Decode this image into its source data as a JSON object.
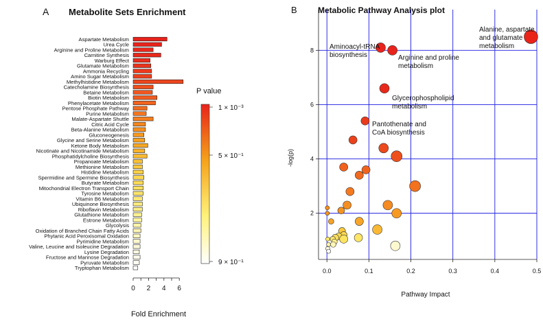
{
  "panel_a": {
    "letter": "A",
    "title": "Metabolite Sets Enrichment",
    "xlabel": "Fold Enrichment",
    "legend": {
      "title": "P value",
      "labels": [
        "1 × 10⁻³",
        "5 × 10⁻¹",
        "9 × 10⁻¹"
      ],
      "colors": [
        "#e8231b",
        "#f5a21a",
        "#fff27a",
        "#ffffff"
      ]
    }
  },
  "panel_b": {
    "letter": "B",
    "title": "Metabolic Pathway Analysis plot",
    "xlabel": "Pathway Impact",
    "ylabel": "-log(p)",
    "annotations": [
      {
        "lines": [
          "Aminoacyl-tRNA",
          "biosynthesis"
        ]
      },
      {
        "lines": [
          "Arginine and proline",
          "metabolism"
        ]
      },
      {
        "lines": [
          "Alanine, aspartate",
          "and glutamate",
          "metabolism"
        ]
      },
      {
        "lines": [
          "Glycerophospholipid",
          "metabolism"
        ]
      },
      {
        "lines": [
          "Pantothenate and",
          "CoA biosynthesis"
        ]
      }
    ]
  },
  "chart_data": [
    {
      "type": "bar",
      "orientation": "horizontal",
      "title": "Metabolite Sets Enrichment",
      "xlabel": "Fold Enrichment",
      "xlim": [
        0,
        7
      ],
      "xticks": [
        0,
        2,
        4,
        6
      ],
      "legend_title": "P value",
      "categories": [
        "Aspartate Metabolism",
        "Urea Cycle",
        "Arginine and Proline Metabolism",
        "Carnitine Synthesis",
        "Warburg Effect",
        "Glutamate Metabolism",
        "Ammonia Recycling",
        "Amino Sugar Metabolism",
        "Methylhistidine Metabolism",
        "Catecholamine Biosynthesis",
        "Betaine Metabolism",
        "Biotin Metabolism",
        "Phenylacetate Metabolism",
        "Pentose Phosphate Pathway",
        "Purine Metabolism",
        "Malate-Aspartate Shuttle",
        "Citric Acid Cycle",
        "Beta-Alanine Metabolism",
        "Gluconeogenesis",
        "Glycine and Serine Metabolism",
        "Ketone Body Metabolism",
        "Nicotinate and Nicotinamide Metabolism",
        "Phosphatidylcholine Biosynthesis",
        "Propanoate Metabolism",
        "Methionine Metabolism",
        "Histidine Metabolism",
        "Spermidine and Spermine Biosynthesis",
        "Butyrate Metabolism",
        "Mitochondrial Electron Transport Chain",
        "Tyrosine Metabolism",
        "Vitamin B6 Metabolism",
        "Ubiquinone Biosynthesis",
        "Riboflavin Metabolism",
        "Glutathione Metabolism",
        "Estrone Metabolism",
        "Glycolysis",
        "Oxidation of Branched Chain Fatty Acids",
        "Phytanic Acid Peroxisomal Oxidation",
        "Pyrimidine Metabolism",
        "Valine, Leucine and Isoleucine Degradation",
        "Lysine Degradation",
        "Fructose and Mannose Degradation",
        "Pyruvate Metabolism",
        "Tryptophan Metabolism"
      ],
      "values": [
        4.4,
        3.7,
        2.6,
        3.6,
        2.2,
        2.3,
        2.4,
        2.4,
        6.5,
        2.6,
        2.5,
        3.1,
        2.9,
        1.8,
        1.7,
        2.6,
        1.6,
        1.6,
        1.4,
        1.5,
        1.9,
        1.5,
        1.8,
        1.2,
        1.2,
        1.3,
        1.4,
        1.3,
        1.3,
        1.3,
        1.2,
        1.2,
        1.2,
        1.1,
        1.1,
        1.0,
        1.0,
        0.9,
        0.9,
        0.9,
        0.8,
        0.9,
        0.8,
        0.6
      ],
      "colors": [
        "#e8231b",
        "#e8231b",
        "#e8281b",
        "#e8281b",
        "#ea2d1c",
        "#ea331c",
        "#ec3a1d",
        "#ec401d",
        "#ed461e",
        "#ef4f1e",
        "#f0561e",
        "#f15c1f",
        "#f2641f",
        "#f26d1f",
        "#f3751f",
        "#f47e1f",
        "#f5871f",
        "#f58f1f",
        "#f6981f",
        "#f7a11f",
        "#f7a924",
        "#f8b229",
        "#f9ba30",
        "#f9c237",
        "#fac93e",
        "#fbd046",
        "#fbd64e",
        "#fcdb57",
        "#fce060",
        "#fde46a",
        "#fde874",
        "#feeb7e",
        "#feee88",
        "#fef192",
        "#fef39d",
        "#fff5a8",
        "#fff6b4",
        "#fff8c0",
        "#fff9cc",
        "#fffad8",
        "#fffbe3",
        "#fffcec",
        "#fffdf4",
        "#ffffff"
      ]
    },
    {
      "type": "scatter",
      "title": "Metabolic Pathway Analysis plot",
      "xlabel": "Pathway Impact",
      "ylabel": "-log(p)",
      "xlim": [
        -0.02,
        0.5
      ],
      "ylim": [
        0.3,
        9.5
      ],
      "xticks": [
        0.0,
        0.1,
        0.2,
        0.3,
        0.4,
        0.5
      ],
      "yticks": [
        2,
        4,
        6,
        8
      ],
      "grid": true,
      "points": [
        {
          "x": 0.486,
          "y": 8.5,
          "r": 10,
          "color": "#ea2319"
        },
        {
          "x": 0.128,
          "y": 8.1,
          "r": 7,
          "color": "#e8231b"
        },
        {
          "x": 0.156,
          "y": 8.0,
          "r": 7,
          "color": "#e8231b"
        },
        {
          "x": 0.137,
          "y": 6.6,
          "r": 7,
          "color": "#e8281b"
        },
        {
          "x": 0.091,
          "y": 5.4,
          "r": 6,
          "color": "#e93a1c"
        },
        {
          "x": 0.062,
          "y": 4.7,
          "r": 6,
          "color": "#eb421c"
        },
        {
          "x": 0.135,
          "y": 4.4,
          "r": 7,
          "color": "#ec4a1d"
        },
        {
          "x": 0.166,
          "y": 4.1,
          "r": 8,
          "color": "#ed501d"
        },
        {
          "x": 0.04,
          "y": 3.7,
          "r": 6,
          "color": "#f0621e"
        },
        {
          "x": 0.093,
          "y": 3.6,
          "r": 6,
          "color": "#f0631e"
        },
        {
          "x": 0.077,
          "y": 3.4,
          "r": 6,
          "color": "#f1691e"
        },
        {
          "x": 0.21,
          "y": 3.0,
          "r": 8,
          "color": "#f27220"
        },
        {
          "x": 0.055,
          "y": 2.8,
          "r": 6,
          "color": "#f37a20"
        },
        {
          "x": 0.145,
          "y": 2.3,
          "r": 7,
          "color": "#f58b22"
        },
        {
          "x": 0.048,
          "y": 2.3,
          "r": 6,
          "color": "#f58e22"
        },
        {
          "x": 0.034,
          "y": 2.1,
          "r": 5,
          "color": "#f69322"
        },
        {
          "x": 0.166,
          "y": 2.0,
          "r": 7,
          "color": "#f69a24"
        },
        {
          "x": 0.001,
          "y": 2.2,
          "r": 3,
          "color": "#f59020"
        },
        {
          "x": 0.001,
          "y": 2.0,
          "r": 3,
          "color": "#f69522"
        },
        {
          "x": 0.01,
          "y": 1.7,
          "r": 4,
          "color": "#f7a228"
        },
        {
          "x": 0.077,
          "y": 1.7,
          "r": 6,
          "color": "#f8a62a"
        },
        {
          "x": 0.12,
          "y": 1.4,
          "r": 7,
          "color": "#f9b934"
        },
        {
          "x": 0.036,
          "y": 1.35,
          "r": 5,
          "color": "#fbc93e"
        },
        {
          "x": 0.04,
          "y": 1.2,
          "r": 5,
          "color": "#fcd84f"
        },
        {
          "x": 0.028,
          "y": 1.15,
          "r": 5,
          "color": "#fcdb55"
        },
        {
          "x": 0.02,
          "y": 1.1,
          "r": 5,
          "color": "#fde060"
        },
        {
          "x": 0.014,
          "y": 1.05,
          "r": 4,
          "color": "#fde46a"
        },
        {
          "x": 0.075,
          "y": 1.1,
          "r": 6,
          "color": "#fde566"
        },
        {
          "x": 0.04,
          "y": 1.05,
          "r": 6,
          "color": "#fde460"
        },
        {
          "x": 0.002,
          "y": 1.05,
          "r": 3,
          "color": "#fde86e"
        },
        {
          "x": 0.018,
          "y": 0.95,
          "r": 4,
          "color": "#fef08c"
        },
        {
          "x": 0.004,
          "y": 0.85,
          "r": 3,
          "color": "#fff4a4"
        },
        {
          "x": 0.015,
          "y": 0.85,
          "r": 4,
          "color": "#fff6b6"
        },
        {
          "x": 0.002,
          "y": 0.7,
          "r": 3,
          "color": "#fffbe0"
        },
        {
          "x": 0.004,
          "y": 0.6,
          "r": 3,
          "color": "#ffffff"
        },
        {
          "x": 0.163,
          "y": 0.8,
          "r": 7,
          "color": "#fff9d0"
        }
      ]
    }
  ]
}
